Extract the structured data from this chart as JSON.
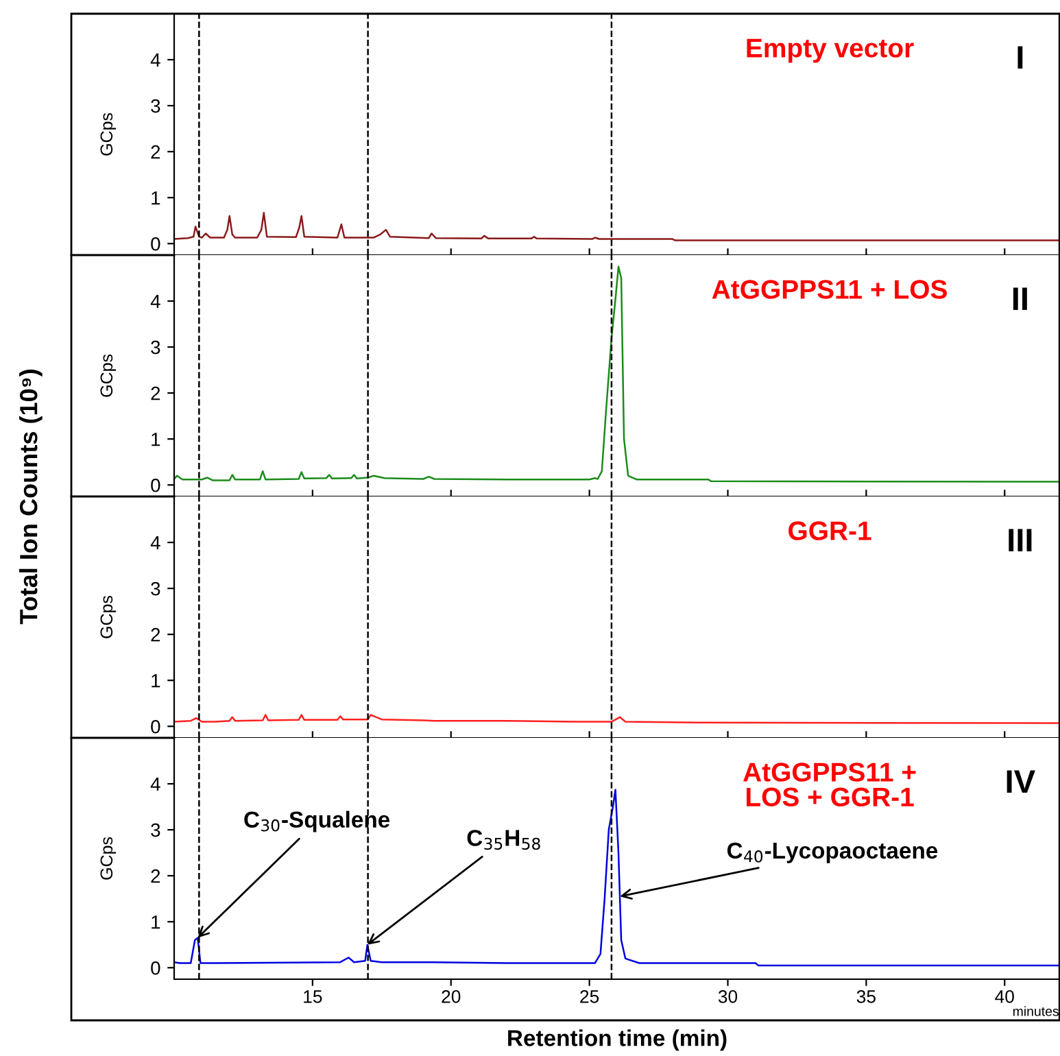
{
  "chart_data": [
    {
      "type": "line",
      "title": "Empty vector",
      "ylabel": "GCps",
      "annotations": [
        "I",
        "Total Ion Counts (10⁹)"
      ],
      "xlim": [
        10,
        42
      ],
      "xticks": [
        15,
        20,
        25,
        30,
        35,
        40
      ],
      "ylim": [
        -0.25,
        5
      ],
      "yticks": [
        0,
        1,
        2,
        3,
        4
      ],
      "tick_labels": "y",
      "grid": false,
      "marker": "none",
      "line_style": "solid",
      "ref_lines": [
        {
          "axis": "x",
          "value": 10.9,
          "color": "#000000",
          "line_style": "dashed"
        },
        {
          "axis": "x",
          "value": 17.0,
          "color": "#000000",
          "line_style": "dashed"
        },
        {
          "axis": "x",
          "value": 25.8,
          "color": "#000000",
          "line_style": "dashed"
        }
      ],
      "series": [
        {
          "color": "#8b1a1a",
          "x": [
            10,
            10.5,
            10.7,
            10.77,
            10.9,
            11.0,
            11.14,
            11.3,
            11.8,
            11.92,
            12.0,
            12.1,
            12.2,
            13.0,
            13.15,
            13.24,
            13.35,
            14.4,
            14.52,
            14.6,
            14.7,
            15.9,
            16.04,
            16.15,
            17.2,
            17.45,
            17.65,
            17.8,
            19.2,
            19.3,
            19.45,
            21.1,
            21.2,
            21.35,
            22.9,
            23.0,
            23.1,
            25.1,
            25.2,
            25.35,
            28.0,
            28.1,
            42
          ],
          "values": [
            0.1,
            0.12,
            0.15,
            0.37,
            0.15,
            0.13,
            0.22,
            0.13,
            0.13,
            0.3,
            0.6,
            0.2,
            0.13,
            0.13,
            0.3,
            0.67,
            0.15,
            0.14,
            0.35,
            0.6,
            0.15,
            0.13,
            0.42,
            0.13,
            0.13,
            0.2,
            0.3,
            0.15,
            0.12,
            0.22,
            0.12,
            0.11,
            0.17,
            0.11,
            0.11,
            0.15,
            0.11,
            0.1,
            0.13,
            0.1,
            0.1,
            0.07,
            0.07
          ]
        }
      ]
    },
    {
      "type": "line",
      "title": "AtGGPPS11 + LOS",
      "ylabel": "GCps",
      "annotations": [
        "II"
      ],
      "xlim": [
        10,
        42
      ],
      "xticks": [
        15,
        20,
        25,
        30,
        35,
        40
      ],
      "ylim": [
        -0.25,
        5
      ],
      "yticks": [
        0,
        1,
        2,
        3,
        4
      ],
      "tick_labels": "y",
      "grid": false,
      "marker": "none",
      "line_style": "solid",
      "ref_lines": [
        {
          "axis": "x",
          "value": 10.9,
          "color": "#000000",
          "line_style": "dashed"
        },
        {
          "axis": "x",
          "value": 17.0,
          "color": "#000000",
          "line_style": "dashed"
        },
        {
          "axis": "x",
          "value": 25.8,
          "color": "#000000",
          "line_style": "dashed"
        }
      ],
      "series": [
        {
          "color": "#1a8c1a",
          "x": [
            10,
            10.1,
            10.3,
            11.0,
            11.2,
            11.4,
            12.0,
            12.1,
            12.2,
            13.1,
            13.2,
            13.3,
            14.5,
            14.6,
            14.7,
            15.5,
            15.6,
            15.7,
            16.4,
            16.5,
            16.6,
            17.0,
            17.2,
            17.6,
            19.0,
            19.2,
            19.4,
            22.0,
            25.0,
            25.2,
            25.3,
            25.45,
            25.6,
            25.8,
            25.95,
            26.05,
            26.15,
            26.25,
            26.4,
            26.7,
            29.3,
            29.4,
            42
          ],
          "values": [
            0.13,
            0.2,
            0.12,
            0.12,
            0.16,
            0.1,
            0.1,
            0.22,
            0.12,
            0.12,
            0.3,
            0.12,
            0.13,
            0.28,
            0.14,
            0.15,
            0.22,
            0.14,
            0.15,
            0.22,
            0.14,
            0.16,
            0.2,
            0.15,
            0.13,
            0.18,
            0.13,
            0.12,
            0.12,
            0.15,
            0.13,
            0.3,
            1.6,
            3.2,
            4.1,
            4.75,
            4.5,
            1.0,
            0.2,
            0.12,
            0.12,
            0.08,
            0.07
          ]
        }
      ]
    },
    {
      "type": "line",
      "title": "GGR-1",
      "ylabel": "GCps",
      "annotations": [
        "III"
      ],
      "xlim": [
        10,
        42
      ],
      "xticks": [
        15,
        20,
        25,
        30,
        35,
        40
      ],
      "ylim": [
        -0.25,
        5
      ],
      "yticks": [
        0,
        1,
        2,
        3,
        4
      ],
      "tick_labels": "y",
      "grid": false,
      "marker": "none",
      "line_style": "solid",
      "ref_lines": [
        {
          "axis": "x",
          "value": 10.9,
          "color": "#000000",
          "line_style": "dashed"
        },
        {
          "axis": "x",
          "value": 17.0,
          "color": "#000000",
          "line_style": "dashed"
        },
        {
          "axis": "x",
          "value": 25.8,
          "color": "#000000",
          "line_style": "dashed"
        }
      ],
      "series": [
        {
          "color": "#ff2020",
          "x": [
            10,
            10.6,
            10.8,
            11.0,
            11.5,
            12.0,
            12.1,
            12.2,
            13.2,
            13.3,
            13.4,
            14.5,
            14.6,
            14.7,
            15.9,
            16.0,
            16.1,
            17.0,
            17.1,
            17.3,
            17.5,
            19.0,
            19.4,
            22.0,
            24.5,
            25.8,
            26.1,
            26.3,
            29.0,
            42
          ],
          "values": [
            0.1,
            0.12,
            0.18,
            0.1,
            0.1,
            0.12,
            0.2,
            0.12,
            0.13,
            0.25,
            0.13,
            0.14,
            0.25,
            0.14,
            0.14,
            0.22,
            0.15,
            0.15,
            0.25,
            0.2,
            0.15,
            0.13,
            0.12,
            0.12,
            0.1,
            0.1,
            0.2,
            0.1,
            0.08,
            0.07
          ]
        }
      ]
    },
    {
      "type": "line",
      "title": "AtGGPPS11 +\nLOS + GGR-1",
      "ylabel": "GCps",
      "xlabel": "Retention time (min)",
      "xlim": [
        10,
        42
      ],
      "xticks": [
        15,
        20,
        25,
        30,
        35,
        40
      ],
      "ylim": [
        -0.25,
        5
      ],
      "yticks": [
        0,
        1,
        2,
        3,
        4
      ],
      "grid": false,
      "marker": "none",
      "line_style": "solid",
      "annotations": [
        "IV",
        "minutes",
        {
          "text": "C$_{30}$-Squalene",
          "x": 10.85,
          "y": 0.65
        },
        {
          "text": "C$_{35}$H$_{58}$",
          "x": 16.98,
          "y": 0.5
        },
        {
          "text": "C$_{40}$-Lycopaoctaene",
          "x": 26.1,
          "y": 1.55
        }
      ],
      "ref_lines": [
        {
          "axis": "x",
          "value": 10.9,
          "color": "#000000",
          "line_style": "dashed"
        },
        {
          "axis": "x",
          "value": 17.0,
          "color": "#000000",
          "line_style": "dashed"
        },
        {
          "axis": "x",
          "value": 25.8,
          "color": "#000000",
          "line_style": "dashed"
        }
      ],
      "series": [
        {
          "color": "#0000e0",
          "x": [
            10,
            10.2,
            10.6,
            10.75,
            10.85,
            10.95,
            11.5,
            14.3,
            16.0,
            16.3,
            16.5,
            16.9,
            16.98,
            17.1,
            17.5,
            19.3,
            22.0,
            25.2,
            25.4,
            25.55,
            25.7,
            25.85,
            25.94,
            26.05,
            26.15,
            26.3,
            26.8,
            31.0,
            31.1,
            42
          ],
          "values": [
            0.12,
            0.1,
            0.1,
            0.6,
            0.65,
            0.1,
            0.1,
            0.11,
            0.12,
            0.22,
            0.12,
            0.15,
            0.5,
            0.15,
            0.12,
            0.12,
            0.1,
            0.1,
            0.3,
            1.5,
            3.0,
            3.5,
            3.87,
            2.5,
            0.6,
            0.2,
            0.1,
            0.1,
            0.05,
            0.05
          ]
        }
      ]
    }
  ]
}
